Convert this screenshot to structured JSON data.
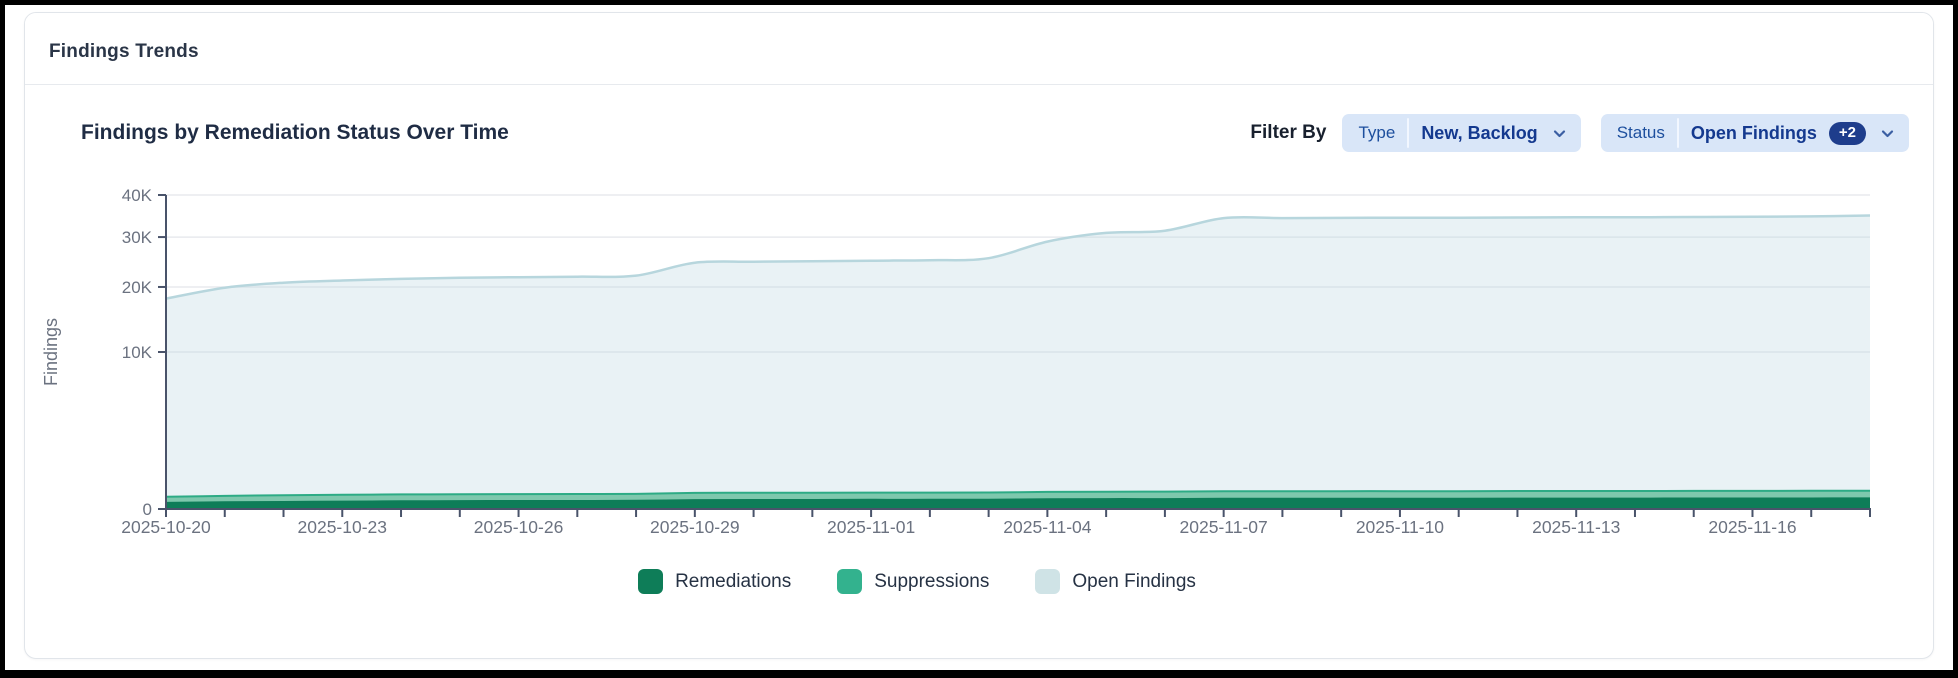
{
  "card": {
    "header_title": "Findings Trends"
  },
  "panel": {
    "title": "Findings by Remediation Status Over Time",
    "filter_by_label": "Filter By",
    "filters": [
      {
        "label": "Type",
        "value": "New, Backlog",
        "badge": null
      },
      {
        "label": "Status",
        "value": "Open Findings",
        "badge": "+2"
      }
    ]
  },
  "colors": {
    "remediations": "#0e7d58",
    "suppressions_stroke": "#2dab85",
    "suppressions_fill": "#7ec8ad",
    "open_findings_stroke": "#b7d6dd",
    "open_findings_fill": "#bbd8df",
    "open_findings_swatch": "#cfe3e6",
    "axis": "#49536a",
    "grid": "#e8eaee",
    "tick_text": "#6b7280",
    "pill_bg": "#d9e6f8",
    "badge_bg": "#1e3d8c"
  },
  "chart_data": {
    "type": "area",
    "stacked": true,
    "title": "Findings by Remediation Status Over Time",
    "ylabel": "Findings",
    "y_scale": "sqrt",
    "ylim": [
      0,
      40000
    ],
    "y_ticks": [
      {
        "label": "0",
        "value": 0
      },
      {
        "label": "10K",
        "value": 10000
      },
      {
        "label": "20K",
        "value": 20000
      },
      {
        "label": "30K",
        "value": 30000
      },
      {
        "label": "40K",
        "value": 40000
      }
    ],
    "x": [
      "2025-10-20",
      "2025-10-21",
      "2025-10-22",
      "2025-10-23",
      "2025-10-24",
      "2025-10-25",
      "2025-10-26",
      "2025-10-27",
      "2025-10-28",
      "2025-10-29",
      "2025-10-30",
      "2025-10-31",
      "2025-11-01",
      "2025-11-02",
      "2025-11-03",
      "2025-11-04",
      "2025-11-05",
      "2025-11-06",
      "2025-11-07",
      "2025-11-08",
      "2025-11-09",
      "2025-11-10",
      "2025-11-11",
      "2025-11-12",
      "2025-11-13",
      "2025-11-14",
      "2025-11-15",
      "2025-11-16",
      "2025-11-17",
      "2025-11-18"
    ],
    "x_tick_label_every": 3,
    "grid": true,
    "legend_position": "bottom",
    "series": [
      {
        "name": "Remediations",
        "stroke": "#0e7d58",
        "fill": "#0e7d58",
        "fill_opacity": 1,
        "swatch": "#0e7d58",
        "values": [
          15,
          18,
          20,
          22,
          24,
          25,
          26,
          26,
          27,
          32,
          33,
          33,
          34,
          34,
          35,
          38,
          40,
          40,
          42,
          42,
          43,
          43,
          43,
          44,
          44,
          44,
          45,
          45,
          45,
          46
        ]
      },
      {
        "name": "Suppressions",
        "stroke": "#2dab85",
        "fill": "#7ec8ad",
        "fill_opacity": 1,
        "swatch": "#33b28e",
        "values": [
          45,
          52,
          57,
          60,
          62,
          63,
          64,
          65,
          66,
          73,
          74,
          74,
          75,
          75,
          76,
          80,
          82,
          83,
          85,
          85,
          86,
          86,
          86,
          87,
          87,
          87,
          88,
          88,
          89,
          90
        ]
      },
      {
        "name": "Open Findings",
        "stroke": "#b7d6dd",
        "fill": "#bbd8df",
        "fill_opacity": 0.32,
        "swatch": "#cfe3e6",
        "values": [
          17900,
          19800,
          20700,
          21100,
          21400,
          21600,
          21700,
          21800,
          22000,
          24500,
          24700,
          24800,
          24900,
          25000,
          25400,
          28900,
          30800,
          31300,
          34200,
          34200,
          34250,
          34300,
          34300,
          34350,
          34400,
          34400,
          34450,
          34500,
          34600,
          34800
        ]
      }
    ]
  }
}
